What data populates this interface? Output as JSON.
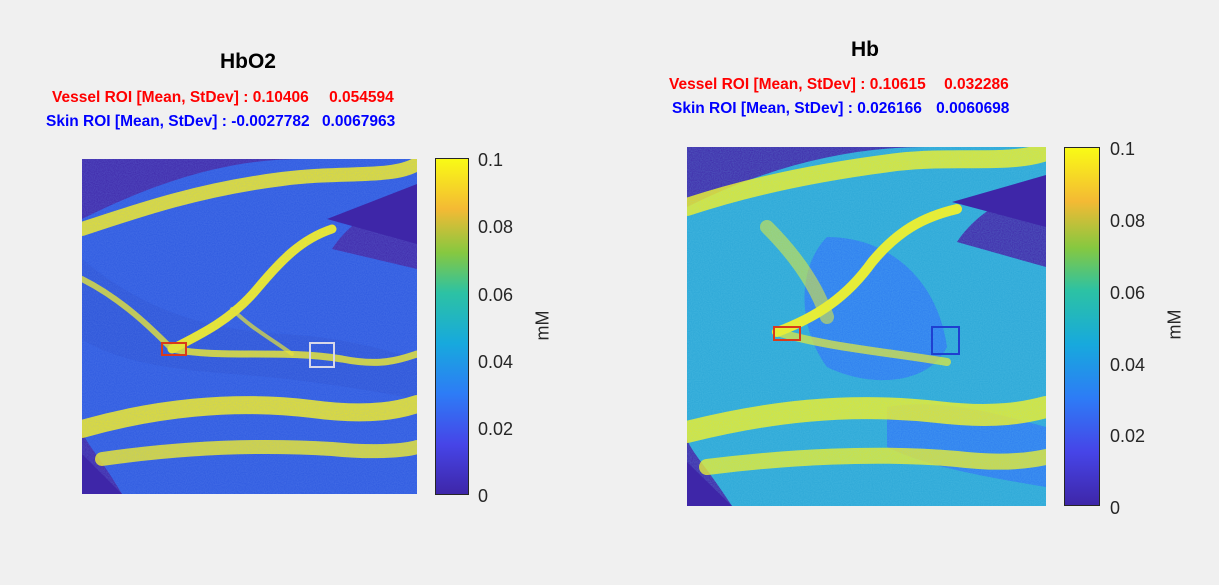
{
  "chart_data": [
    {
      "type": "heatmap",
      "title": "HbO2",
      "stats": {
        "vessel": {
          "label": "Vessel ROI [Mean, StDev] :",
          "mean": "0.10406",
          "stdev": "0.054594"
        },
        "skin": {
          "label": "Skin ROI [Mean, StDev] :",
          "mean": "-0.0027782",
          "stdev": "0.0067963"
        }
      },
      "colorbar": {
        "label": "mM",
        "ticks": [
          "0",
          "0.02",
          "0.04",
          "0.06",
          "0.08",
          "0.1"
        ],
        "range": [
          0,
          0.1
        ],
        "colormap": "parula"
      },
      "roi_colors": {
        "vessel": "#d93a1a",
        "skin": "#d8d8e8"
      }
    },
    {
      "type": "heatmap",
      "title": "Hb",
      "stats": {
        "vessel": {
          "label": "Vessel ROI [Mean, StDev] :",
          "mean": "0.10615",
          "stdev": "0.032286"
        },
        "skin": {
          "label": "Skin ROI [Mean, StDev] :",
          "mean": "0.026166",
          "stdev": "0.0060698"
        }
      },
      "colorbar": {
        "label": "mM",
        "ticks": [
          "0",
          "0.02",
          "0.04",
          "0.06",
          "0.08",
          "0.1"
        ],
        "range": [
          0,
          0.1
        ],
        "colormap": "parula"
      },
      "roi_colors": {
        "vessel": "#d93a1a",
        "skin": "#1f3fd0"
      }
    }
  ],
  "colors": {
    "background": "#f0f0f0",
    "vessel_text": "#ff0000",
    "skin_text": "#0000ff"
  }
}
